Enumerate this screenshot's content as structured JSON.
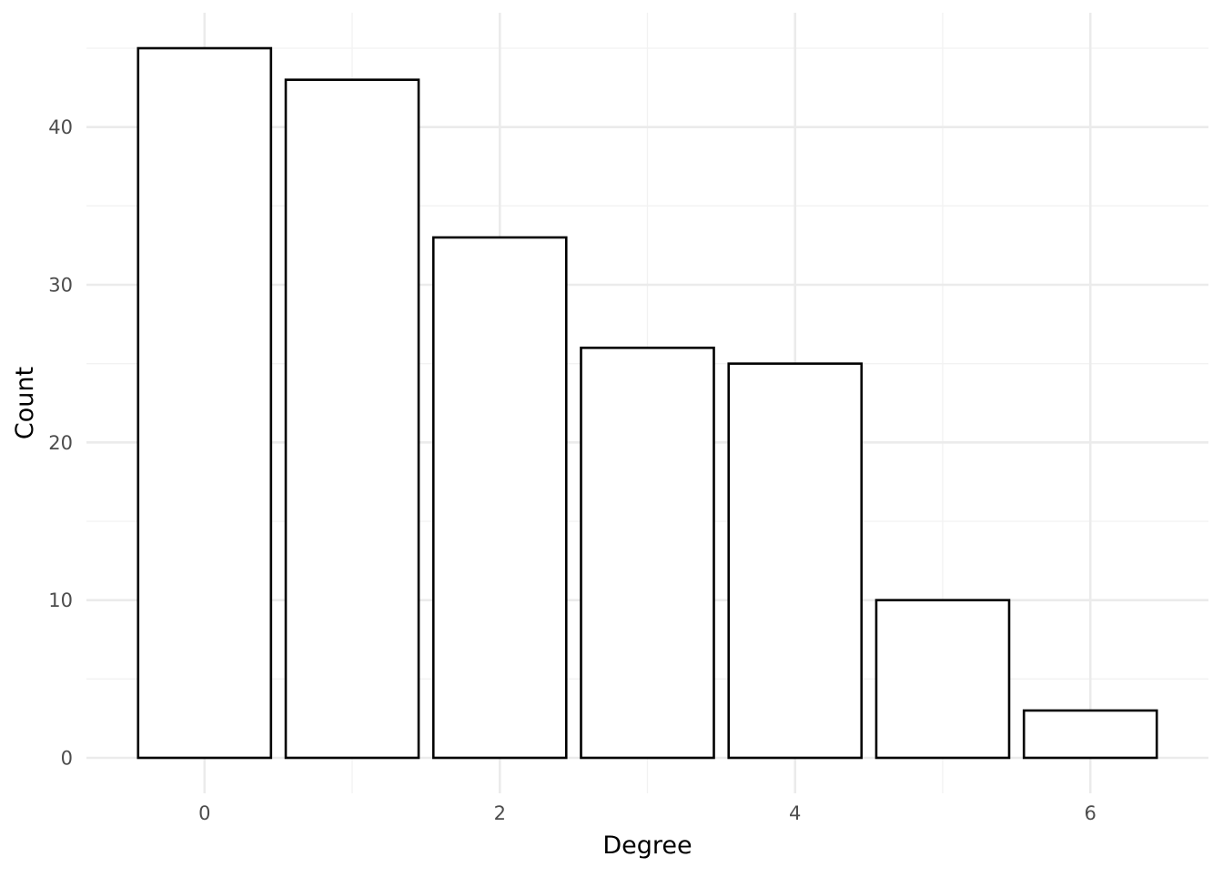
{
  "chart_data": {
    "type": "bar",
    "x": [
      0,
      1,
      2,
      3,
      4,
      5,
      6
    ],
    "values": [
      45,
      43,
      33,
      26,
      25,
      10,
      3
    ],
    "xlabel": "Degree",
    "ylabel": "Count",
    "xlim": [
      -0.8,
      6.8
    ],
    "ylim": [
      -2.25,
      47.25
    ],
    "x_ticks": [
      "0",
      "2",
      "4",
      "6"
    ],
    "y_ticks": [
      "0",
      "10",
      "20",
      "30",
      "40"
    ],
    "grid": true,
    "bar_fill": "#ffffff",
    "bar_outline": "#000000",
    "grid_major_color": "#ebebeb",
    "grid_minor_color": "#f2f2f2",
    "theme": "minimal"
  }
}
